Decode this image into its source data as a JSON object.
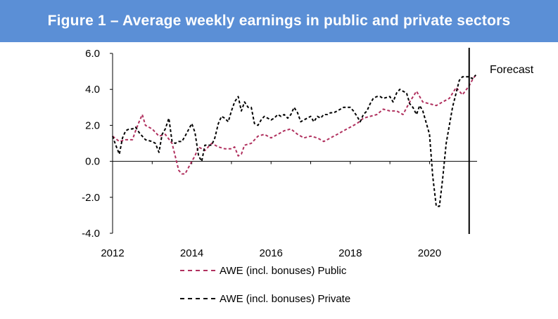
{
  "header": {
    "title": "Figure 1 – Average weekly earnings in public and private sectors"
  },
  "colors": {
    "title_bg": "#5b8fd6",
    "public": "#b0305e",
    "private": "#000000"
  },
  "chart_data": {
    "type": "line",
    "title": "Figure 1 – Average weekly earnings in public and private sectors",
    "xlabel": "",
    "ylabel": "",
    "xlim": [
      2012,
      2021.2
    ],
    "ylim": [
      -4.0,
      6.0
    ],
    "x_ticks": [
      2012,
      2014,
      2016,
      2018,
      2020
    ],
    "x_tick_labels": [
      "2012",
      "2014",
      "2016",
      "2018",
      "2020"
    ],
    "y_ticks": [
      -4.0,
      -2.0,
      0.0,
      2.0,
      4.0,
      6.0
    ],
    "y_tick_labels": [
      "-4.0",
      "-2.0",
      "0.0",
      "2.0",
      "4.0",
      "6.0"
    ],
    "grid": false,
    "legend_position": "bottom",
    "annotation": {
      "text": "Forecast",
      "x": 2021.0
    },
    "series": [
      {
        "name": "AWE (incl. bonuses) Public",
        "color": "#b0305e",
        "style": "dashed",
        "x": [
          2012.0,
          2012.17,
          2012.33,
          2012.5,
          2012.58,
          2012.67,
          2012.75,
          2012.83,
          2013.0,
          2013.17,
          2013.33,
          2013.5,
          2013.67,
          2013.75,
          2013.83,
          2014.0,
          2014.08,
          2014.17,
          2014.33,
          2014.5,
          2014.67,
          2014.83,
          2015.0,
          2015.08,
          2015.17,
          2015.25,
          2015.33,
          2015.5,
          2015.67,
          2015.83,
          2016.0,
          2016.17,
          2016.33,
          2016.5,
          2016.67,
          2016.83,
          2017.0,
          2017.17,
          2017.33,
          2017.5,
          2017.67,
          2017.83,
          2018.0,
          2018.17,
          2018.33,
          2018.5,
          2018.67,
          2018.83,
          2019.0,
          2019.17,
          2019.33,
          2019.5,
          2019.67,
          2019.83,
          2020.0,
          2020.17,
          2020.33,
          2020.5,
          2020.67,
          2020.83,
          2021.0,
          2021.1,
          2021.17
        ],
        "y": [
          1.4,
          1.1,
          1.2,
          1.2,
          1.7,
          2.2,
          2.6,
          2.0,
          1.8,
          1.4,
          1.5,
          1.0,
          -0.5,
          -0.7,
          -0.7,
          0.0,
          0.3,
          0.8,
          0.6,
          1.0,
          0.8,
          0.7,
          0.7,
          0.8,
          0.3,
          0.4,
          0.9,
          1.0,
          1.4,
          1.5,
          1.3,
          1.5,
          1.7,
          1.8,
          1.5,
          1.3,
          1.4,
          1.3,
          1.1,
          1.3,
          1.5,
          1.7,
          1.9,
          2.1,
          2.4,
          2.5,
          2.6,
          2.9,
          2.8,
          2.8,
          2.6,
          3.3,
          3.9,
          3.3,
          3.2,
          3.1,
          3.3,
          3.5,
          4.1,
          3.7,
          4.2,
          4.6,
          4.8
        ]
      },
      {
        "name": "AWE (incl. bonuses) Private",
        "color": "#000000",
        "style": "dashed",
        "x": [
          2012.0,
          2012.08,
          2012.17,
          2012.25,
          2012.33,
          2012.42,
          2012.5,
          2012.58,
          2012.67,
          2012.75,
          2012.83,
          2013.0,
          2013.08,
          2013.17,
          2013.25,
          2013.33,
          2013.42,
          2013.5,
          2013.58,
          2013.67,
          2013.75,
          2013.83,
          2014.0,
          2014.08,
          2014.17,
          2014.25,
          2014.33,
          2014.42,
          2014.5,
          2014.58,
          2014.67,
          2014.75,
          2014.83,
          2014.92,
          2015.0,
          2015.08,
          2015.17,
          2015.25,
          2015.33,
          2015.42,
          2015.5,
          2015.58,
          2015.67,
          2015.75,
          2015.83,
          2016.0,
          2016.08,
          2016.17,
          2016.25,
          2016.33,
          2016.42,
          2016.5,
          2016.58,
          2016.67,
          2016.75,
          2016.83,
          2017.0,
          2017.08,
          2017.17,
          2017.25,
          2017.33,
          2017.42,
          2017.5,
          2017.58,
          2017.67,
          2017.75,
          2017.83,
          2018.0,
          2018.08,
          2018.17,
          2018.25,
          2018.33,
          2018.42,
          2018.5,
          2018.58,
          2018.67,
          2018.75,
          2018.83,
          2019.0,
          2019.08,
          2019.17,
          2019.25,
          2019.33,
          2019.42,
          2019.5,
          2019.58,
          2019.67,
          2019.75,
          2019.83,
          2020.0,
          2020.08,
          2020.17,
          2020.25,
          2020.33,
          2020.42,
          2020.5,
          2020.58,
          2020.67,
          2020.75,
          2020.83,
          2021.0,
          2021.08,
          2021.17
        ],
        "y": [
          1.4,
          0.9,
          0.4,
          1.3,
          1.7,
          1.8,
          1.8,
          1.9,
          1.6,
          1.4,
          1.2,
          1.1,
          1.0,
          0.5,
          1.5,
          1.8,
          2.4,
          1.1,
          1.0,
          1.1,
          1.1,
          1.4,
          2.1,
          1.6,
          0.3,
          0.0,
          0.9,
          0.9,
          0.9,
          1.3,
          2.1,
          2.5,
          2.4,
          2.2,
          2.8,
          3.3,
          3.6,
          2.8,
          3.3,
          3.0,
          3.0,
          2.1,
          2.0,
          2.3,
          2.5,
          2.3,
          2.4,
          2.6,
          2.5,
          2.6,
          2.4,
          2.6,
          3.0,
          2.7,
          2.2,
          2.3,
          2.5,
          2.2,
          2.5,
          2.4,
          2.6,
          2.6,
          2.7,
          2.7,
          2.8,
          2.9,
          3.0,
          3.0,
          2.8,
          2.5,
          2.2,
          2.6,
          2.8,
          3.2,
          3.5,
          3.6,
          3.6,
          3.5,
          3.6,
          3.3,
          3.8,
          4.0,
          3.9,
          3.8,
          3.2,
          3.0,
          2.6,
          3.1,
          2.8,
          1.5,
          -0.8,
          -2.5,
          -2.5,
          -1.0,
          1.0,
          2.0,
          3.0,
          3.8,
          4.5,
          4.7,
          4.7,
          4.6,
          4.8
        ]
      }
    ]
  },
  "legend": {
    "public_label": "AWE (incl. bonuses) Public",
    "private_label": "AWE (incl. bonuses) Private"
  }
}
